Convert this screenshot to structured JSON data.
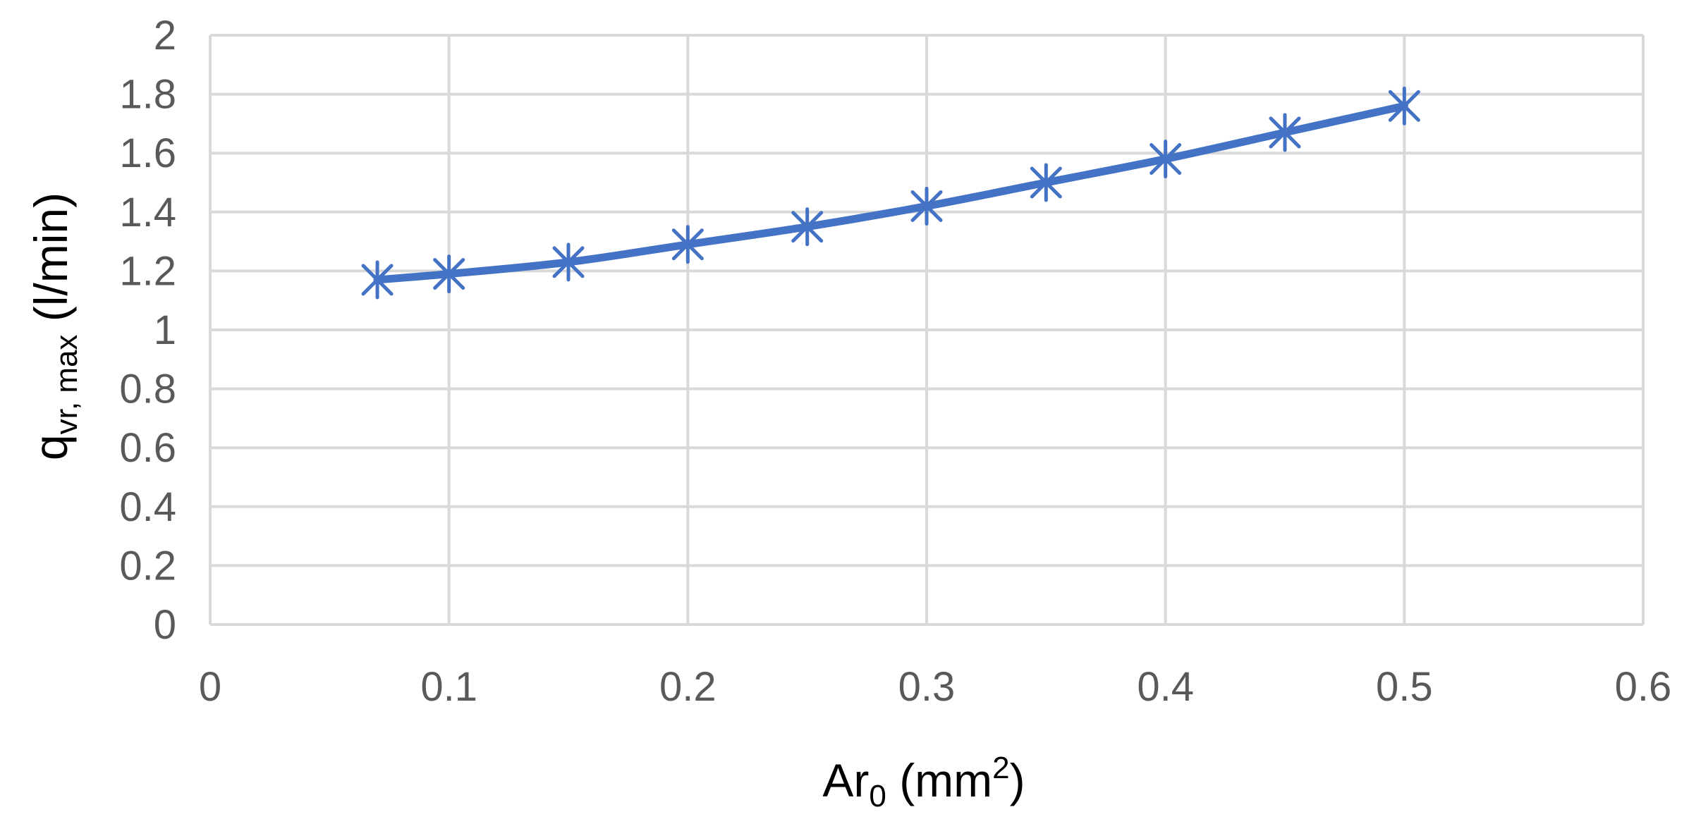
{
  "chart_data": {
    "type": "scatter",
    "series_style": "smooth-line-with-markers",
    "marker": "asterisk",
    "color": "#4472C4",
    "grid": true,
    "legend": "none",
    "title": "",
    "xlabel": {
      "base": "Ar",
      "sub": "0",
      "mid": " (mm",
      "sup": "2",
      "end": ")"
    },
    "ylabel": {
      "base": "q",
      "sub": "vr, max",
      "end": " (l/min)"
    },
    "xlim": [
      0,
      0.6
    ],
    "ylim": [
      0,
      2
    ],
    "xticks": [
      "0",
      "0.1",
      "0.2",
      "0.3",
      "0.4",
      "0.5",
      "0.6"
    ],
    "yticks": [
      "0",
      "0.2",
      "0.4",
      "0.6",
      "0.8",
      "1",
      "1.2",
      "1.4",
      "1.6",
      "1.8",
      "2"
    ],
    "x": [
      0.07,
      0.1,
      0.15,
      0.2,
      0.25,
      0.3,
      0.35,
      0.4,
      0.45,
      0.5
    ],
    "y": [
      1.17,
      1.19,
      1.23,
      1.29,
      1.35,
      1.42,
      1.5,
      1.58,
      1.67,
      1.76
    ]
  }
}
